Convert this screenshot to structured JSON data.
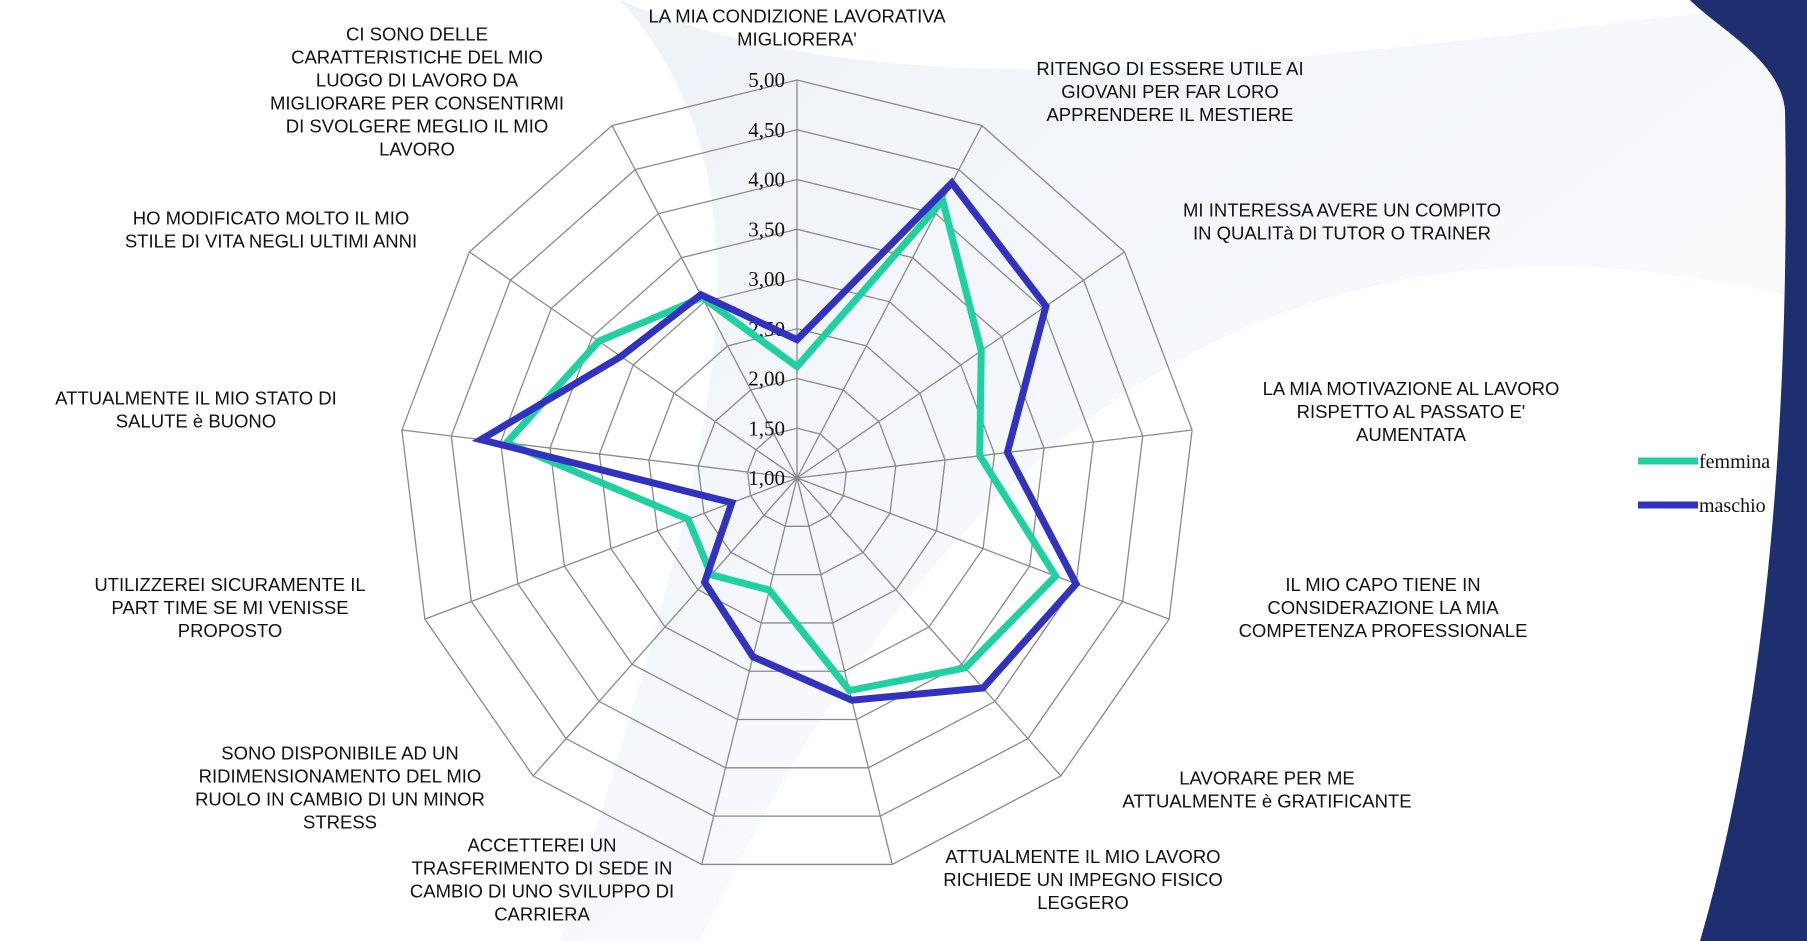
{
  "chart_data": {
    "type": "radar",
    "categories": [
      "LA MIA CONDIZIONE LAVORATIVA MIGLIORERA'",
      "RITENGO DI ESSERE UTILE AI GIOVANI PER FAR LORO APPRENDERE IL MESTIERE",
      "MI INTERESSA AVERE UN COMPITO IN QUALITà DI TUTOR O TRAINER",
      "LA MIA MOTIVAZIONE AL LAVORO RISPETTO AL PASSATO E' AUMENTATA",
      "IL MIO CAPO TIENE IN CONSIDERAZIONE LA MIA COMPETENZA PROFESSIONALE",
      "LAVORARE PER ME ATTUALMENTE è GRATIFICANTE",
      "ATTUALMENTE IL MIO LAVORO RICHIEDE UN IMPEGNO FISICO LEGGERO",
      "ACCETTEREI UN TRASFERIMENTO DI SEDE IN CAMBIO DI UNO SVILUPPO DI CARRIERA",
      "SONO DISPONIBILE AD UN RIDIMENSIONAMENTO DEL MIO RUOLO IN CAMBIO DI UN MINOR STRESS",
      "UTILIZZEREI SICURAMENTE IL PART TIME SE MI VENISSE PROPOSTO",
      "ATTUALMENTE IL MIO STATO DI SALUTE è BUONO",
      "HO MODIFICATO MOLTO IL MIO STILE DI VITA NEGLI ULTIMI ANNI",
      "CI SONO DELLE CARATTERISTICHE DEL MIO LUOGO DI LAVORO DA MIGLIORARE PER CONSENTIRMI DI SVOLGERE MEGLIO IL MIO LAVORO"
    ],
    "series": [
      {
        "name": "femmina",
        "color": "#1fd1a0",
        "values": [
          2.12,
          4.15,
          3.25,
          2.85,
          3.78,
          3.55,
          3.2,
          2.16,
          2.3,
          2.17,
          3.94,
          3.42,
          3.05
        ]
      },
      {
        "name": "maschio",
        "color": "#3232c0",
        "values": [
          2.39,
          4.35,
          4.04,
          3.13,
          4.0,
          3.82,
          3.3,
          2.85,
          2.4,
          1.7,
          4.2,
          3.15,
          3.08
        ]
      }
    ],
    "ylim": [
      1,
      5
    ],
    "yticks": [
      {
        "value": 1,
        "label": "1,00"
      },
      {
        "value": 1.5,
        "label": "1,50"
      },
      {
        "value": 2,
        "label": "2,00"
      },
      {
        "value": 2.5,
        "label": "2,50"
      },
      {
        "value": 3,
        "label": "3,00"
      },
      {
        "value": 3.5,
        "label": "3,50"
      },
      {
        "value": 4,
        "label": "4,00"
      },
      {
        "value": 4.5,
        "label": "4,50"
      },
      {
        "value": 5,
        "label": "5,00"
      }
    ],
    "grid": true
  }
}
